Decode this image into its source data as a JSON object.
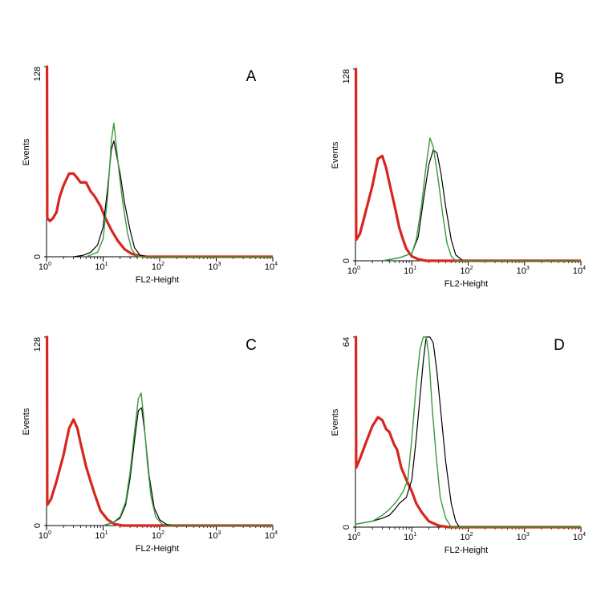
{
  "chart_data": [
    {
      "type": "line",
      "panel_label": "A",
      "xlabel": "FL2-Height",
      "ylabel": "Events",
      "x_scale": "log",
      "xlim": [
        1,
        10000
      ],
      "ylim": [
        0,
        128
      ],
      "y_ticks": [
        "0",
        "128"
      ],
      "x_ticks": [
        {
          "base": "10",
          "exp": "0"
        },
        {
          "base": "10",
          "exp": "1"
        },
        {
          "base": "10",
          "exp": "2"
        },
        {
          "base": "10",
          "exp": "3"
        },
        {
          "base": "10",
          "exp": "4"
        }
      ],
      "series": [
        {
          "color": "#d7261e",
          "width": 3.2,
          "points": [
            [
              1.0,
              128
            ],
            [
              1.02,
              128
            ],
            [
              1.03,
              26
            ],
            [
              1.15,
              24
            ],
            [
              1.3,
              26
            ],
            [
              1.5,
              30
            ],
            [
              1.7,
              40
            ],
            [
              2.0,
              48
            ],
            [
              2.5,
              56
            ],
            [
              3.0,
              56
            ],
            [
              3.5,
              53
            ],
            [
              4.0,
              50
            ],
            [
              5.0,
              50
            ],
            [
              6.0,
              44
            ],
            [
              7.0,
              41
            ],
            [
              9.0,
              34
            ],
            [
              11.0,
              26
            ],
            [
              14.0,
              18
            ],
            [
              18.0,
              11
            ],
            [
              24.0,
              5
            ],
            [
              32.0,
              2
            ],
            [
              45.0,
              0.5
            ],
            [
              60,
              0
            ],
            [
              10000,
              0
            ]
          ]
        },
        {
          "color": "#000000",
          "width": 1.2,
          "points": [
            [
              3.0,
              0
            ],
            [
              4.5,
              1
            ],
            [
              6.0,
              3
            ],
            [
              8.0,
              8
            ],
            [
              10.0,
              20
            ],
            [
              12.0,
              46
            ],
            [
              14.0,
              72
            ],
            [
              15.5,
              78
            ],
            [
              17.0,
              70
            ],
            [
              20.0,
              56
            ],
            [
              24.0,
              36
            ],
            [
              30.0,
              18
            ],
            [
              36.0,
              6
            ],
            [
              45.0,
              1
            ],
            [
              60.0,
              0
            ],
            [
              10000,
              0
            ]
          ]
        },
        {
          "color": "#3a9a3a",
          "width": 1.4,
          "points": [
            [
              5.0,
              0
            ],
            [
              8.0,
              3
            ],
            [
              10.0,
              12
            ],
            [
              12.0,
              40
            ],
            [
              14.0,
              78
            ],
            [
              15.5,
              90
            ],
            [
              17.0,
              76
            ],
            [
              19.0,
              58
            ],
            [
              22.0,
              38
            ],
            [
              27.0,
              16
            ],
            [
              32.0,
              5
            ],
            [
              38.0,
              1
            ],
            [
              45.0,
              0
            ],
            [
              10000,
              0
            ]
          ]
        }
      ]
    },
    {
      "type": "line",
      "panel_label": "B",
      "xlabel": "FL2-Height",
      "ylabel": "Events",
      "x_scale": "log",
      "xlim": [
        1,
        10000
      ],
      "ylim": [
        0,
        128
      ],
      "y_ticks": [
        "0",
        "128"
      ],
      "x_ticks": [
        {
          "base": "10",
          "exp": "0"
        },
        {
          "base": "10",
          "exp": "1"
        },
        {
          "base": "10",
          "exp": "2"
        },
        {
          "base": "10",
          "exp": "3"
        },
        {
          "base": "10",
          "exp": "4"
        }
      ],
      "series": [
        {
          "color": "#d7261e",
          "width": 3.2,
          "points": [
            [
              1.0,
              128
            ],
            [
              1.02,
              128
            ],
            [
              1.03,
              14
            ],
            [
              1.2,
              18
            ],
            [
              1.5,
              32
            ],
            [
              2.0,
              50
            ],
            [
              2.5,
              68
            ],
            [
              3.0,
              70
            ],
            [
              3.5,
              62
            ],
            [
              4.0,
              52
            ],
            [
              5.0,
              36
            ],
            [
              6.0,
              22
            ],
            [
              7.0,
              14
            ],
            [
              8.0,
              8
            ],
            [
              10.0,
              3
            ],
            [
              13.0,
              1
            ],
            [
              18.0,
              0
            ],
            [
              10000,
              0
            ]
          ]
        },
        {
          "color": "#000000",
          "width": 1.2,
          "points": [
            [
              3.0,
              0
            ],
            [
              6.0,
              2
            ],
            [
              10.0,
              5
            ],
            [
              13.0,
              16
            ],
            [
              16.0,
              40
            ],
            [
              20.0,
              64
            ],
            [
              24.0,
              74
            ],
            [
              28.0,
              72
            ],
            [
              33.0,
              58
            ],
            [
              40.0,
              36
            ],
            [
              50.0,
              14
            ],
            [
              60.0,
              4
            ],
            [
              80.0,
              0
            ],
            [
              10000,
              0
            ]
          ]
        },
        {
          "color": "#3a9a3a",
          "width": 1.4,
          "points": [
            [
              3.0,
              0
            ],
            [
              6.0,
              2
            ],
            [
              10.0,
              5
            ],
            [
              12.0,
              14
            ],
            [
              15.0,
              38
            ],
            [
              18.0,
              64
            ],
            [
              21.0,
              82
            ],
            [
              24.0,
              76
            ],
            [
              29.0,
              56
            ],
            [
              35.0,
              32
            ],
            [
              42.0,
              12
            ],
            [
              50.0,
              3
            ],
            [
              60.0,
              0
            ],
            [
              10000,
              0
            ]
          ]
        }
      ]
    },
    {
      "type": "line",
      "panel_label": "C",
      "xlabel": "FL2-Height",
      "ylabel": "Events",
      "x_scale": "log",
      "xlim": [
        1,
        10000
      ],
      "ylim": [
        0,
        128
      ],
      "y_ticks": [
        "0",
        "128"
      ],
      "x_ticks": [
        {
          "base": "10",
          "exp": "0"
        },
        {
          "base": "10",
          "exp": "1"
        },
        {
          "base": "10",
          "exp": "2"
        },
        {
          "base": "10",
          "exp": "3"
        },
        {
          "base": "10",
          "exp": "4"
        }
      ],
      "series": [
        {
          "color": "#d7261e",
          "width": 3.2,
          "points": [
            [
              1.0,
              128
            ],
            [
              1.02,
              128
            ],
            [
              1.03,
              14
            ],
            [
              1.2,
              18
            ],
            [
              1.5,
              30
            ],
            [
              2.0,
              48
            ],
            [
              2.5,
              66
            ],
            [
              3.0,
              72
            ],
            [
              3.5,
              66
            ],
            [
              4.0,
              56
            ],
            [
              5.0,
              40
            ],
            [
              6.0,
              30
            ],
            [
              7.0,
              22
            ],
            [
              9.0,
              10
            ],
            [
              12.0,
              4
            ],
            [
              16.0,
              1
            ],
            [
              22.0,
              0
            ],
            [
              10000,
              0
            ]
          ]
        },
        {
          "color": "#000000",
          "width": 1.2,
          "points": [
            [
              10.0,
              0
            ],
            [
              15.0,
              2
            ],
            [
              20.0,
              5
            ],
            [
              25.0,
              14
            ],
            [
              30.0,
              32
            ],
            [
              36.0,
              58
            ],
            [
              42.0,
              78
            ],
            [
              48.0,
              80
            ],
            [
              55.0,
              62
            ],
            [
              65.0,
              34
            ],
            [
              80.0,
              12
            ],
            [
              100.0,
              4
            ],
            [
              130.0,
              1
            ],
            [
              170.0,
              0
            ],
            [
              10000,
              0
            ]
          ]
        },
        {
          "color": "#3a9a3a",
          "width": 1.4,
          "points": [
            [
              10.0,
              0
            ],
            [
              15.0,
              2
            ],
            [
              20.0,
              6
            ],
            [
              25.0,
              16
            ],
            [
              30.0,
              36
            ],
            [
              36.0,
              64
            ],
            [
              42.0,
              86
            ],
            [
              47.0,
              90
            ],
            [
              52.0,
              74
            ],
            [
              60.0,
              44
            ],
            [
              70.0,
              20
            ],
            [
              85.0,
              6
            ],
            [
              110.0,
              1
            ],
            [
              140.0,
              0
            ],
            [
              10000,
              0
            ]
          ]
        }
      ]
    },
    {
      "type": "line",
      "panel_label": "D",
      "xlabel": "FL2-Height",
      "ylabel": "Events",
      "x_scale": "log",
      "xlim": [
        1,
        10000
      ],
      "ylim": [
        0,
        64
      ],
      "y_ticks": [
        "0",
        "64"
      ],
      "x_ticks": [
        {
          "base": "10",
          "exp": "0"
        },
        {
          "base": "10",
          "exp": "1"
        },
        {
          "base": "10",
          "exp": "2"
        },
        {
          "base": "10",
          "exp": "3"
        },
        {
          "base": "10",
          "exp": "4"
        }
      ],
      "series": [
        {
          "color": "#d7261e",
          "width": 3.2,
          "points": [
            [
              1.0,
              64
            ],
            [
              1.02,
              64
            ],
            [
              1.03,
              20
            ],
            [
              1.2,
              23
            ],
            [
              1.5,
              28
            ],
            [
              2.0,
              34
            ],
            [
              2.5,
              37
            ],
            [
              3.0,
              36
            ],
            [
              3.5,
              33
            ],
            [
              4.0,
              32
            ],
            [
              4.8,
              28
            ],
            [
              5.5,
              26
            ],
            [
              6.5,
              20
            ],
            [
              8.0,
              16
            ],
            [
              10.0,
              12
            ],
            [
              12.0,
              8
            ],
            [
              15.0,
              5
            ],
            [
              20.0,
              2
            ],
            [
              30.0,
              0.5
            ],
            [
              45.0,
              0
            ],
            [
              10000,
              0
            ]
          ]
        },
        {
          "color": "#000000",
          "width": 1.2,
          "points": [
            [
              1.0,
              1
            ],
            [
              2.0,
              2
            ],
            [
              3.0,
              3
            ],
            [
              4.0,
              4
            ],
            [
              5.0,
              6
            ],
            [
              6.0,
              8
            ],
            [
              8.0,
              10
            ],
            [
              10.0,
              16
            ],
            [
              12.0,
              30
            ],
            [
              14.0,
              44
            ],
            [
              16.0,
              56
            ],
            [
              18.0,
              64
            ],
            [
              21.0,
              64
            ],
            [
              24.0,
              62
            ],
            [
              28.0,
              52
            ],
            [
              33.0,
              38
            ],
            [
              40.0,
              22
            ],
            [
              50.0,
              8
            ],
            [
              60.0,
              2
            ],
            [
              70.0,
              0
            ],
            [
              10000,
              0
            ]
          ]
        },
        {
          "color": "#3a9a3a",
          "width": 1.4,
          "points": [
            [
              1.0,
              1
            ],
            [
              2.0,
              2
            ],
            [
              3.0,
              4
            ],
            [
              4.0,
              6
            ],
            [
              5.0,
              8
            ],
            [
              6.0,
              10
            ],
            [
              7.0,
              12
            ],
            [
              8.5,
              16
            ],
            [
              10.0,
              30
            ],
            [
              12.0,
              48
            ],
            [
              14.0,
              60
            ],
            [
              16.0,
              64
            ],
            [
              18.0,
              64
            ],
            [
              20.0,
              58
            ],
            [
              23.0,
              40
            ],
            [
              27.0,
              24
            ],
            [
              32.0,
              10
            ],
            [
              40.0,
              3
            ],
            [
              50.0,
              0
            ],
            [
              10000,
              0
            ]
          ]
        }
      ]
    }
  ]
}
